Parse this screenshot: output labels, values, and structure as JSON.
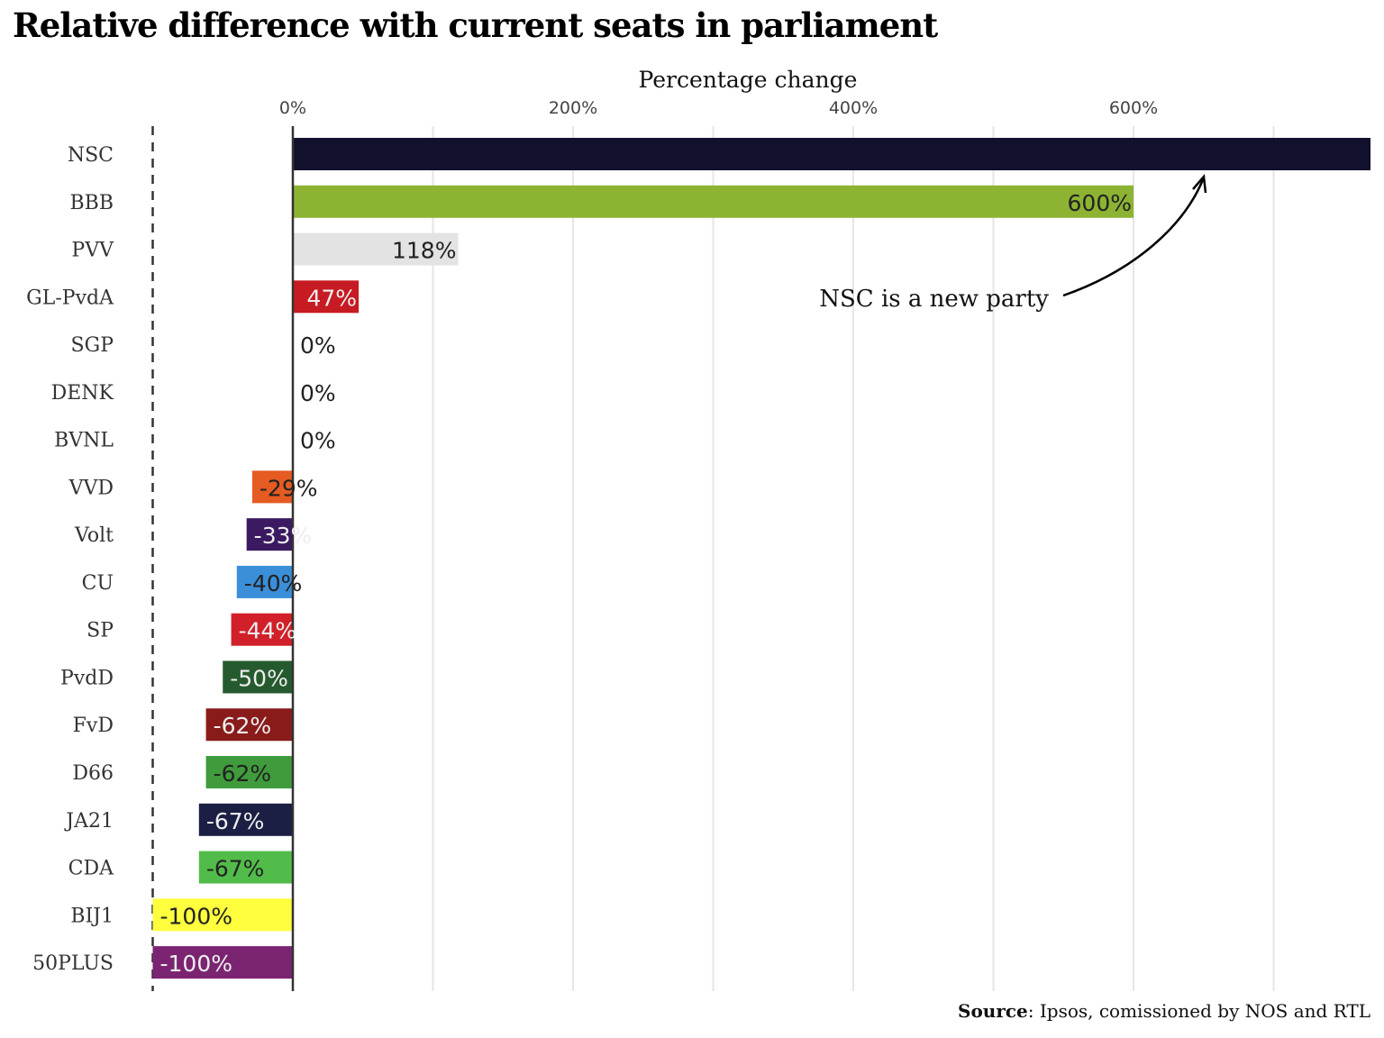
{
  "chart_data": {
    "type": "bar",
    "orientation": "horizontal",
    "title": "Relative difference with current seats in parliament",
    "xlabel": "Percentage change",
    "xlim": [
      -100,
      769
    ],
    "xticks": [
      0,
      200,
      400,
      600
    ],
    "xtick_labels": [
      "0%",
      "200%",
      "400%",
      "600%"
    ],
    "grid": true,
    "reference_line": -100,
    "categories": [
      "NSC",
      "BBB",
      "PVV",
      "GL-PvdA",
      "SGP",
      "DENK",
      "BVNL",
      "VVD",
      "Volt",
      "CU",
      "SP",
      "PvdD",
      "FvD",
      "D66",
      "JA21",
      "CDA",
      "BIJ1",
      "50PLUS"
    ],
    "values": [
      null,
      600,
      118,
      47,
      0,
      0,
      0,
      -29,
      -33,
      -40,
      -44,
      -50,
      -62,
      -62,
      -67,
      -67,
      -100,
      -100
    ],
    "labels": [
      "",
      "600%",
      "118%",
      "47%",
      "0%",
      "0%",
      "0%",
      "-29%",
      "-33%",
      "-40%",
      "-44%",
      "-50%",
      "-62%",
      "-62%",
      "-67%",
      "-67%",
      "-100%",
      "-100%"
    ],
    "colors": [
      "#11112d",
      "#8db333",
      "#e3e3e3",
      "#c71b23",
      "#888888",
      "#2b8f9d",
      "#1f4e8f",
      "#e55b22",
      "#3b1a62",
      "#3a8fd8",
      "#d12029",
      "#255a2e",
      "#8a1b1b",
      "#3f9b3c",
      "#1b1f44",
      "#52bc4a",
      "#ffff3d",
      "#7b2572"
    ],
    "label_colors": [
      "#fff",
      "#222",
      "#222",
      "#eee",
      "#222",
      "#222",
      "#222",
      "#222",
      "#eee",
      "#222",
      "#eee",
      "#eee",
      "#eee",
      "#222",
      "#eee",
      "#222",
      "#222",
      "#eee"
    ],
    "annotation": "NSC is a new party"
  },
  "source": {
    "label": "Source",
    "text": ": Ipsos, comissioned by NOS and RTL"
  }
}
